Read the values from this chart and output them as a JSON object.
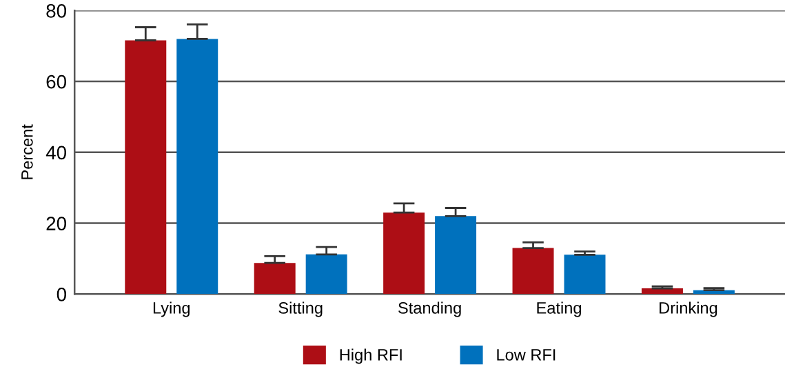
{
  "chart_data": {
    "type": "bar",
    "ylabel": "Percent",
    "categories": [
      "Lying",
      "Sitting",
      "Standing",
      "Eating",
      "Drinking"
    ],
    "series": [
      {
        "name": "High RFI",
        "color": "#ad0e15",
        "values": [
          71.6,
          8.8,
          23.0,
          13.0,
          1.6
        ],
        "errors": [
          [
            71.6,
            75.3
          ],
          [
            8.8,
            10.7
          ],
          [
            23.0,
            25.6
          ],
          [
            13.0,
            14.6
          ],
          [
            1.6,
            2.2
          ]
        ]
      },
      {
        "name": "Low RFI",
        "color": "#0071bd",
        "values": [
          72.0,
          11.2,
          22.0,
          11.1,
          1.1
        ],
        "errors": [
          [
            72.0,
            76.1
          ],
          [
            11.2,
            13.3
          ],
          [
            22.0,
            24.3
          ],
          [
            11.1,
            12.0
          ],
          [
            1.1,
            1.7
          ]
        ]
      }
    ],
    "ylim": [
      0,
      80
    ],
    "yticks": [
      0,
      20,
      40,
      60,
      80
    ],
    "grid": "y",
    "legend": "bottom"
  }
}
